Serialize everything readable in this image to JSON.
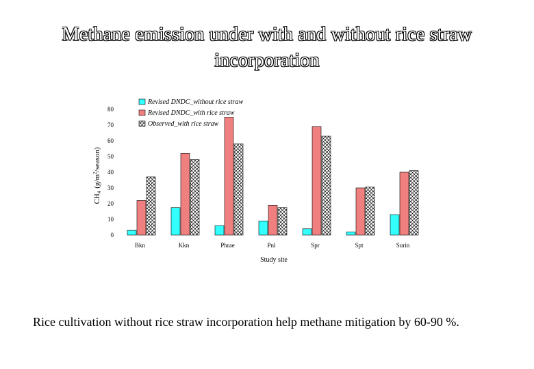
{
  "slide": {
    "title_line1": "Methane emission under with and without rice straw",
    "title_line2": "incorporation",
    "caption": "Rice cultivation without rice straw incorporation help methane mitigation by 60-90 %."
  },
  "colors": {
    "without_straw": "#33ffff",
    "with_straw": "#f08080",
    "observed_hatch": "#000000"
  },
  "chart_data": {
    "type": "bar",
    "xlabel": "Study site",
    "ylabel_parts": {
      "name": "CH",
      "sub": "4",
      "unit_open": "(g/m",
      "sup": "2",
      "unit_close": "/season)"
    },
    "ylim": [
      0,
      80
    ],
    "yticks": [
      0,
      10,
      20,
      30,
      40,
      50,
      60,
      70,
      80
    ],
    "grid": false,
    "legend_position": "top-left",
    "categories": [
      "Bkn",
      "Kkn",
      "Phrae",
      "Pnl",
      "Spr",
      "Spt",
      "Surin"
    ],
    "series": [
      {
        "name": "Revised DNDC_without rice straw",
        "color": "#33ffff",
        "pattern": "solid",
        "values": [
          3,
          17.5,
          6,
          9,
          4,
          2,
          13
        ]
      },
      {
        "name": "Revised DNDC_with rice straw",
        "color": "#f08080",
        "pattern": "solid",
        "values": [
          22,
          52,
          75,
          19,
          69,
          30,
          40
        ]
      },
      {
        "name": "Observed_with rice straw",
        "color": "#ffffff",
        "pattern": "crosshatch",
        "values": [
          37,
          48,
          58,
          17.5,
          63,
          30.5,
          41
        ]
      }
    ]
  }
}
